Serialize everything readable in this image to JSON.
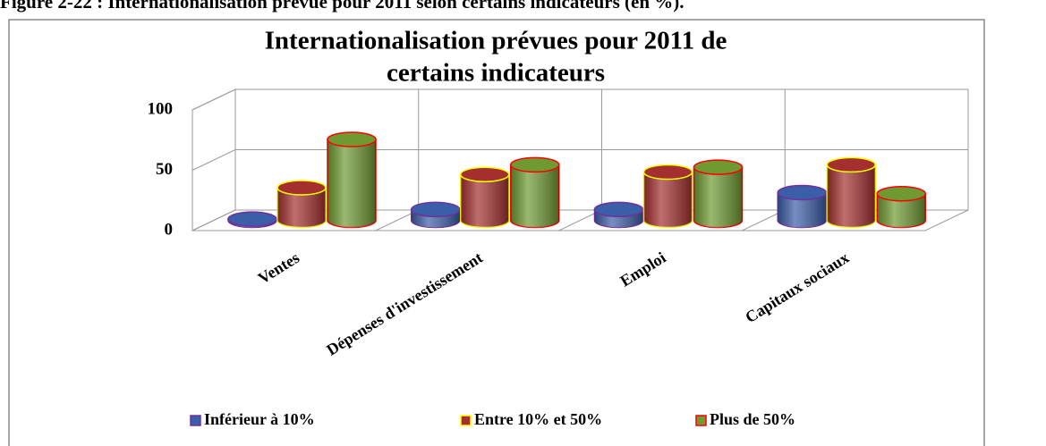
{
  "chart_data": {
    "type": "bar3d",
    "caption": "Figure 2-22 : Internationalisation prévue pour 2011 selon certains indicateurs (en %).",
    "title": [
      "Internationalisation prévues pour 2011 de",
      "certains indicateurs"
    ],
    "categories": [
      "Ventes",
      "Dépenses d'investissement",
      "Emploi",
      "Capitaux sociaux"
    ],
    "series": [
      {
        "name": "Inférieur à 10%",
        "color": "#3b5ea8",
        "edge": "#7030a0",
        "values": [
          1,
          9,
          9,
          23
        ]
      },
      {
        "name": "Entre 10% et 50%",
        "color": "#a3302f",
        "edge": "#ffff00",
        "values": [
          27,
          38,
          40,
          46
        ]
      },
      {
        "name": "Plus de 50%",
        "color": "#6f9a32",
        "edge": "#ff0000",
        "values": [
          67,
          46,
          44,
          22
        ]
      }
    ],
    "ylim": [
      0,
      100
    ],
    "yticks": [
      0,
      50,
      100
    ],
    "grid": true,
    "legend": "bottom"
  }
}
